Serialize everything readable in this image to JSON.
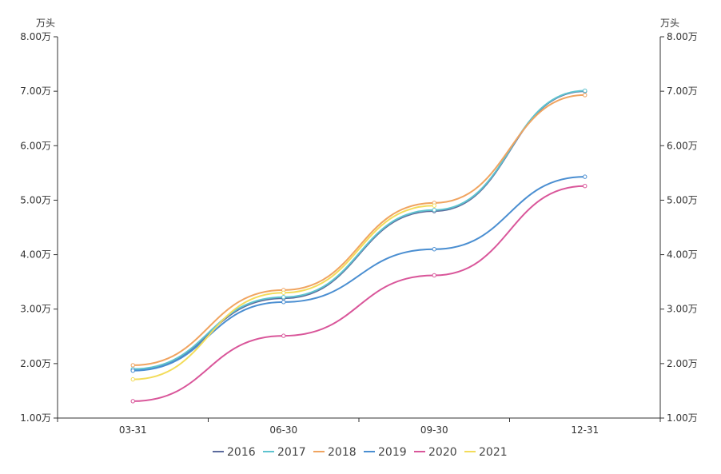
{
  "chart_data": {
    "type": "line",
    "title": "",
    "y_unit_left": "万头",
    "y_unit_right": "万头",
    "categories": [
      "03-31",
      "06-30",
      "09-30",
      "12-31"
    ],
    "ylim": [
      1.0,
      8.0
    ],
    "yticks": [
      1,
      2,
      3,
      4,
      5,
      6,
      7,
      8
    ],
    "ytick_labels": [
      "1.00万",
      "2.00万",
      "3.00万",
      "4.00万",
      "5.00万",
      "6.00万",
      "7.00万",
      "8.00万"
    ],
    "smooth": true,
    "grid": false,
    "legend_position": "bottom",
    "series": [
      {
        "name": "2016",
        "color": "#5b6a9c",
        "values": [
          1.88,
          3.2,
          4.8,
          7.0
        ]
      },
      {
        "name": "2017",
        "color": "#5ec3cf",
        "values": [
          1.9,
          3.22,
          4.82,
          7.01
        ]
      },
      {
        "name": "2018",
        "color": "#f0a460",
        "values": [
          1.97,
          3.35,
          4.95,
          6.93
        ]
      },
      {
        "name": "2019",
        "color": "#4a8ed1",
        "values": [
          1.87,
          3.13,
          4.1,
          5.43
        ]
      },
      {
        "name": "2020",
        "color": "#d9569a",
        "values": [
          1.31,
          2.51,
          3.62,
          5.26
        ]
      },
      {
        "name": "2021",
        "color": "#f3dc5a",
        "values": [
          1.71,
          3.3,
          4.9,
          null
        ]
      }
    ]
  }
}
